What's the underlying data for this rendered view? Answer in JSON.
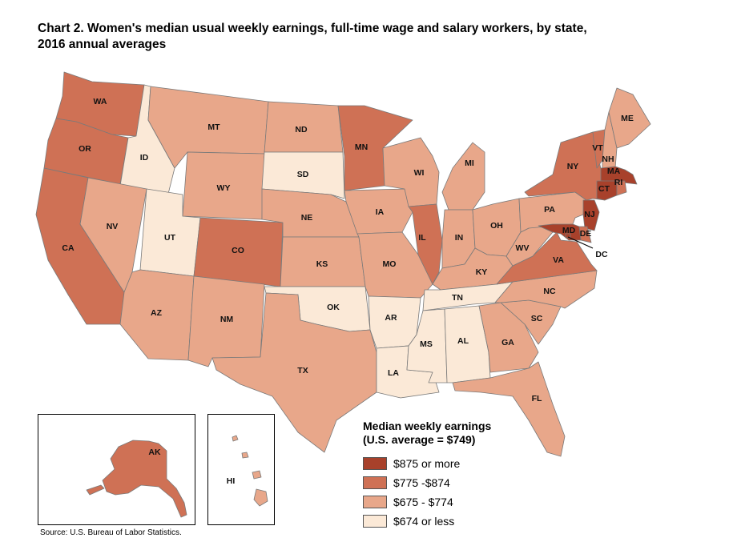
{
  "title": {
    "line1": "Chart 2. Women's median usual weekly earnings, full-time wage and salary workers, by state,",
    "line2": "2016 annual averages"
  },
  "colors": {
    "tier1": "#a8412b",
    "tier2": "#cf7155",
    "tier3": "#e8a78a",
    "tier4": "#fbe9d7"
  },
  "legend": {
    "title_line1": "Median weekly earnings",
    "title_line2": "(U.S. average = $749)",
    "items": [
      {
        "label": "$875 or more",
        "tier": "tier1"
      },
      {
        "label": "$775 -$874",
        "tier": "tier2"
      },
      {
        "label": "$675 - $774",
        "tier": "tier3"
      },
      {
        "label": "$674 or less",
        "tier": "tier4"
      }
    ]
  },
  "states": {
    "WA": "tier2",
    "OR": "tier2",
    "CA": "tier2",
    "ID": "tier4",
    "NV": "tier3",
    "UT": "tier4",
    "AZ": "tier3",
    "MT": "tier3",
    "WY": "tier3",
    "CO": "tier2",
    "NM": "tier3",
    "ND": "tier3",
    "SD": "tier4",
    "NE": "tier3",
    "KS": "tier3",
    "OK": "tier4",
    "TX": "tier3",
    "MN": "tier2",
    "IA": "tier3",
    "MO": "tier3",
    "AR": "tier4",
    "LA": "tier4",
    "WI": "tier3",
    "IL": "tier2",
    "MI": "tier3",
    "IN": "tier3",
    "OH": "tier3",
    "KY": "tier3",
    "TN": "tier4",
    "MS": "tier4",
    "AL": "tier4",
    "GA": "tier3",
    "FL": "tier3",
    "SC": "tier3",
    "NC": "tier3",
    "VA": "tier2",
    "WV": "tier3",
    "PA": "tier3",
    "NY": "tier2",
    "VT": "tier2",
    "NH": "tier3",
    "ME": "tier3",
    "MA": "tier1",
    "RI": "tier2",
    "CT": "tier1",
    "NJ": "tier1",
    "DE": "tier2",
    "MD": "tier1",
    "DC": "tier1",
    "AK": "tier2",
    "HI": "tier3"
  },
  "source": "Source: U.S. Bureau of Labor Statistics."
}
